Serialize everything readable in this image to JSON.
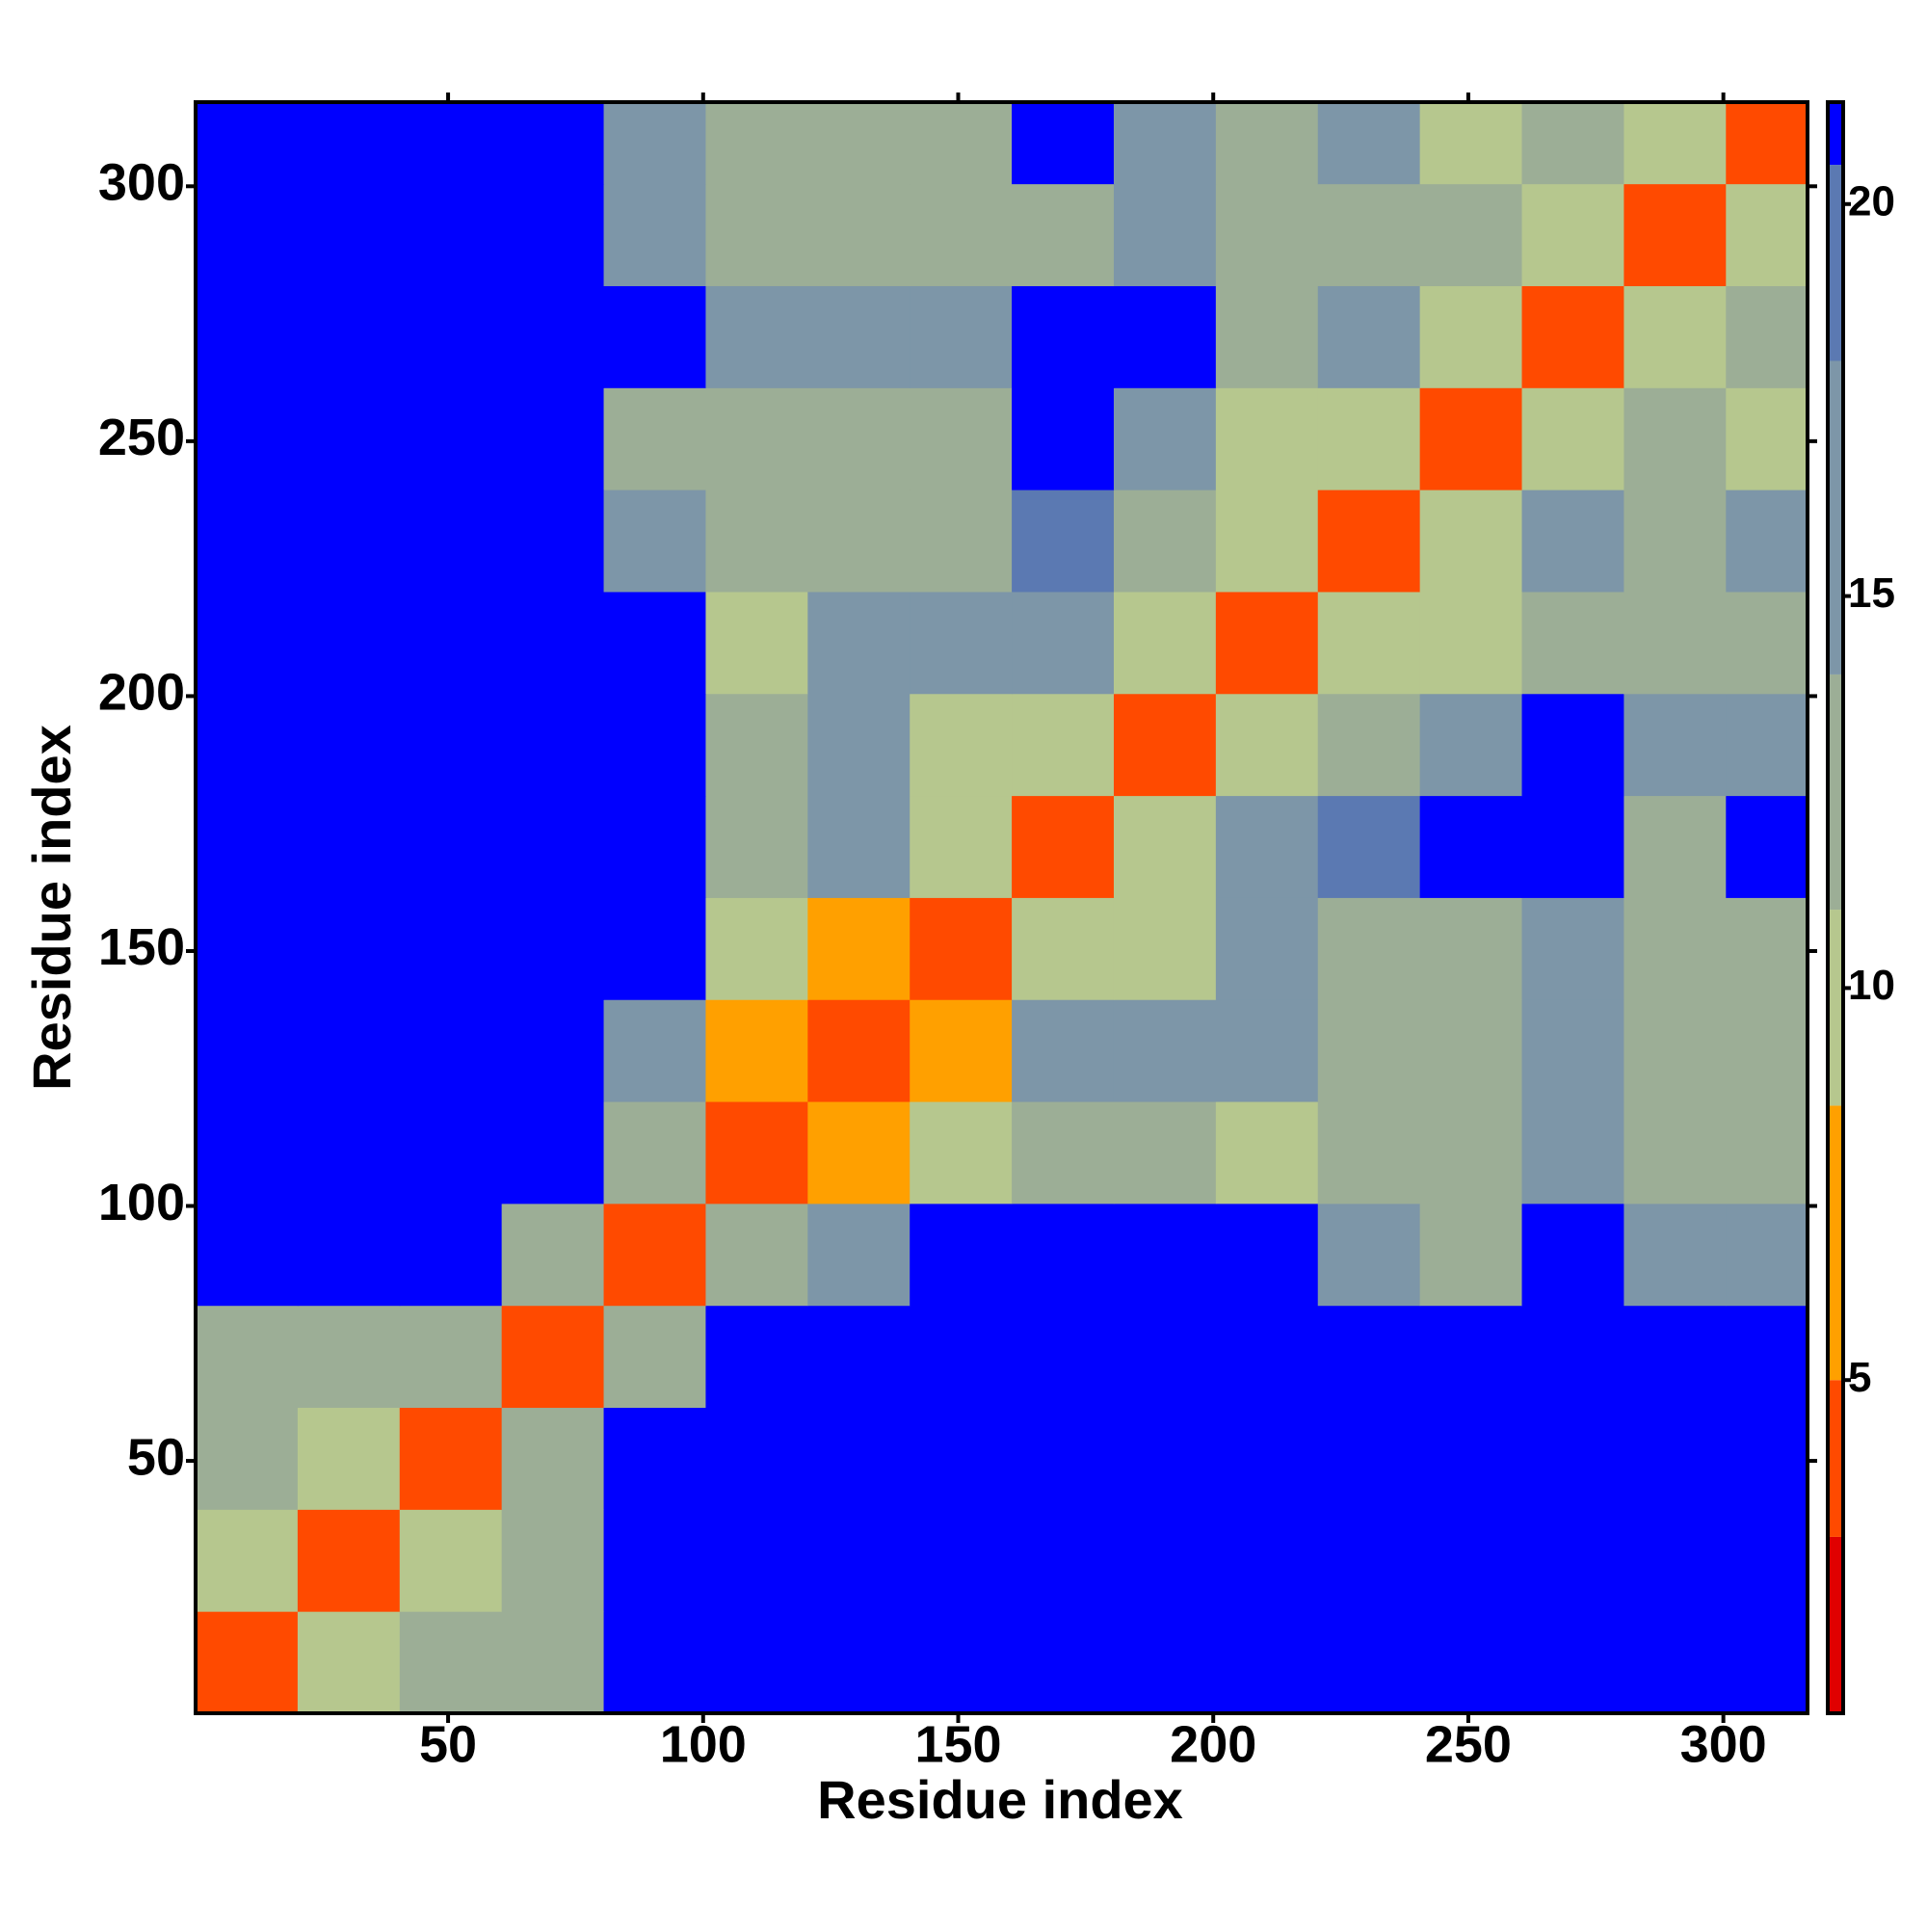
{
  "chart_data": {
    "type": "heatmap",
    "x_label": "Residue index",
    "y_label": "Residue index",
    "xbins": [
      0.5,
      20.5,
      40.5,
      60.5,
      80.5,
      100.5,
      120.5,
      140.5,
      160.5,
      180.5,
      200.5,
      220.5,
      240.5,
      260.5,
      280.5,
      300.5,
      316.5
    ],
    "ybins": [
      0.5,
      20.5,
      40.5,
      60.5,
      80.5,
      100.5,
      120.5,
      140.5,
      160.5,
      180.5,
      200.5,
      220.5,
      240.5,
      260.5,
      280.5,
      300.5,
      316.5
    ],
    "xlim": [
      0.5,
      316.5
    ],
    "ylim": [
      0.5,
      316.5
    ],
    "xticks": [
      50,
      100,
      150,
      200,
      250,
      300
    ],
    "yticks": [
      50,
      100,
      150,
      200,
      250,
      300
    ],
    "z": [
      [
        4,
        10,
        12,
        14,
        21,
        21,
        21,
        21,
        21,
        21,
        21,
        21,
        21,
        21,
        21,
        21
      ],
      [
        10,
        4,
        11,
        13,
        21,
        21,
        21,
        21,
        21,
        21,
        21,
        21,
        21,
        21,
        21,
        21
      ],
      [
        12,
        11,
        4,
        12,
        21,
        21,
        21,
        21,
        21,
        21,
        21,
        21,
        21,
        21,
        21,
        21
      ],
      [
        14,
        13,
        12,
        4,
        13,
        21,
        21,
        21,
        21,
        21,
        21,
        21,
        21,
        21,
        21,
        21
      ],
      [
        21,
        21,
        21,
        13,
        4,
        12,
        15,
        21,
        21,
        21,
        21,
        15,
        14,
        21,
        17,
        17
      ],
      [
        21,
        21,
        21,
        21,
        12,
        4,
        8,
        9,
        12,
        12,
        9,
        12,
        12,
        15,
        12,
        12
      ],
      [
        21,
        21,
        21,
        21,
        15,
        8,
        4,
        8,
        15,
        16,
        16,
        12,
        13,
        16,
        12,
        12
      ],
      [
        21,
        21,
        21,
        21,
        21,
        9,
        8,
        4,
        11,
        11,
        15,
        13,
        14,
        16,
        13,
        12
      ],
      [
        21,
        21,
        21,
        21,
        21,
        12,
        15,
        11,
        4,
        11,
        17,
        19,
        21,
        21,
        14,
        21
      ],
      [
        21,
        21,
        21,
        21,
        21,
        12,
        16,
        11,
        11,
        4,
        11,
        13,
        15,
        21,
        17,
        17
      ],
      [
        21,
        21,
        21,
        21,
        21,
        9,
        16,
        15,
        17,
        11,
        4,
        10,
        10,
        14,
        13,
        13
      ],
      [
        21,
        21,
        21,
        21,
        15,
        12,
        12,
        13,
        19,
        13,
        10,
        4,
        11,
        16,
        14,
        15
      ],
      [
        21,
        21,
        21,
        21,
        14,
        12,
        13,
        14,
        21,
        15,
        10,
        11,
        4,
        10,
        13,
        11
      ],
      [
        21,
        21,
        21,
        21,
        21,
        15,
        16,
        16,
        21,
        21,
        14,
        16,
        10,
        4,
        10,
        12
      ],
      [
        21,
        21,
        21,
        21,
        17,
        12,
        12,
        13,
        14,
        17,
        13,
        14,
        13,
        10,
        4,
        10
      ],
      [
        21,
        21,
        21,
        21,
        17,
        12,
        12,
        12,
        21,
        17,
        13,
        15,
        11,
        12,
        10,
        4
      ]
    ],
    "colorscale": [
      [
        3,
        "#e00000"
      ],
      [
        5,
        "#ff4a00"
      ],
      [
        8.5,
        "#ffa000"
      ],
      [
        11,
        "#b6c78e"
      ],
      [
        14,
        "#9cae96"
      ],
      [
        18,
        "#7d96a8"
      ],
      [
        20.5,
        "#5b79b2"
      ],
      [
        21.3,
        "#0000ff"
      ]
    ],
    "zlim": [
      0.75,
      21.3
    ],
    "zticks": [
      5,
      10,
      15,
      20
    ]
  }
}
